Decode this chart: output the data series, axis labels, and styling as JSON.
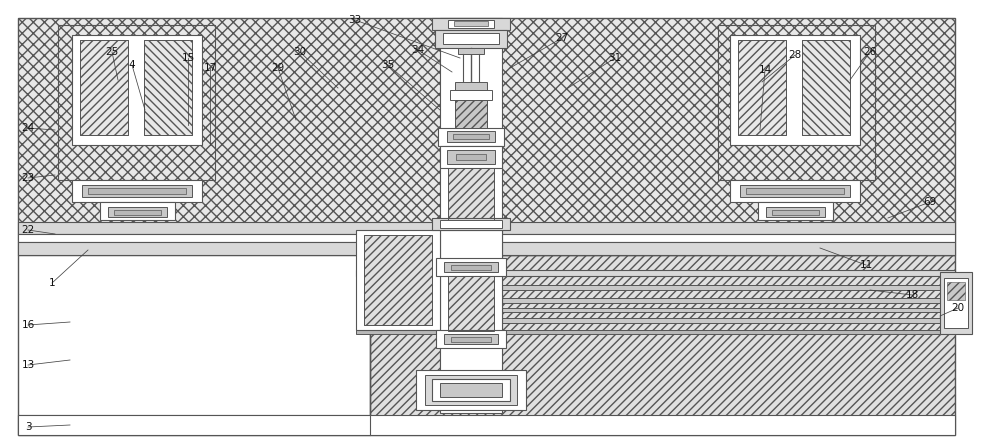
{
  "bg": "#ffffff",
  "lc": "#555555",
  "lc2": "#333333",
  "hatch_fc_upper": "#e8e8e8",
  "hatch_fc_lower": "#e0e0e0",
  "white": "#ffffff",
  "gray1": "#d8d8d8",
  "gray2": "#c8c8c8",
  "gray3": "#b8b8b8"
}
